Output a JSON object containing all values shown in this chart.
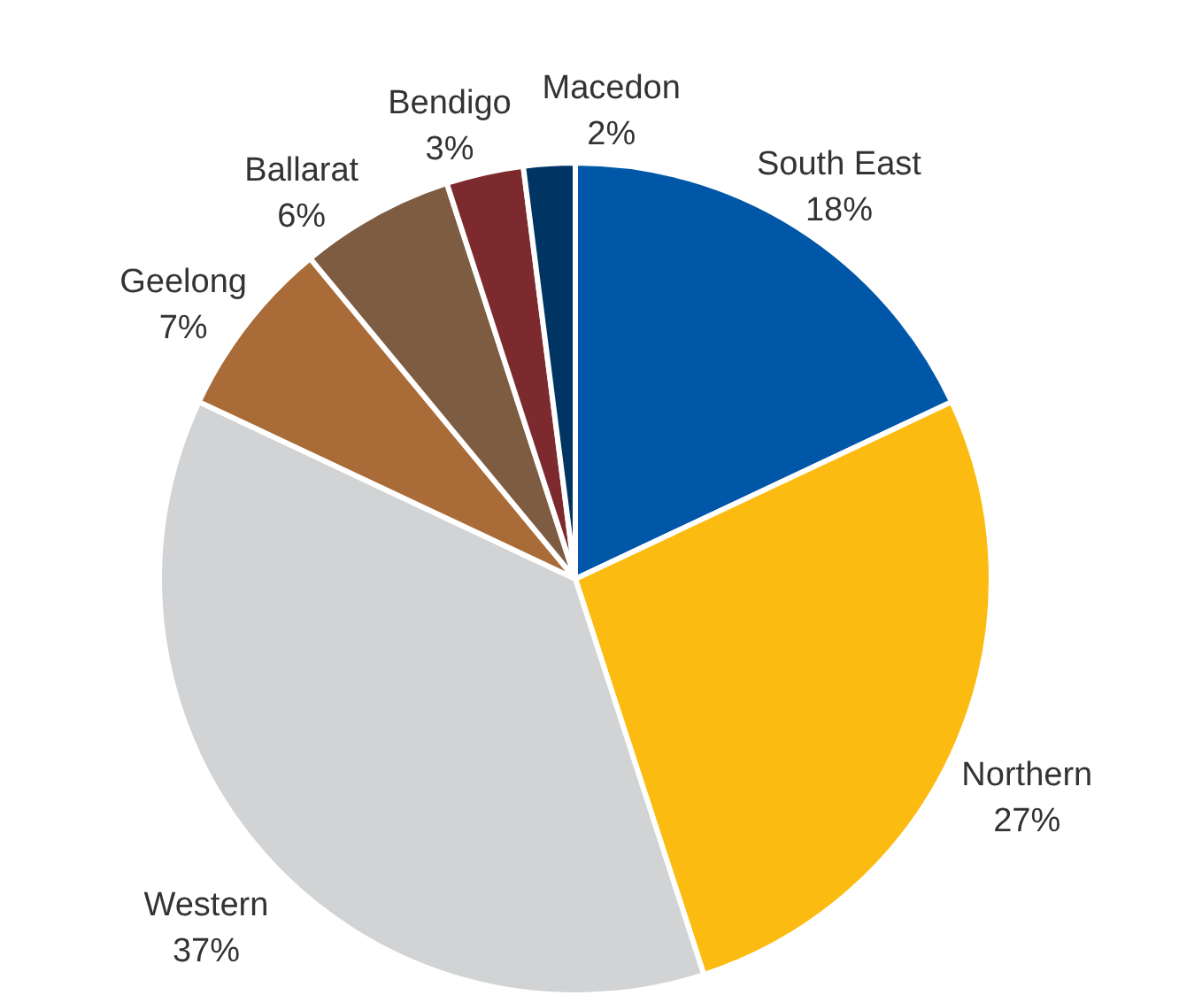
{
  "chart_data": {
    "type": "pie",
    "categories": [
      "South East",
      "Northern",
      "Western",
      "Geelong",
      "Ballarat",
      "Bendigo",
      "Macedon"
    ],
    "values": [
      18,
      27,
      37,
      7,
      6,
      3,
      2
    ],
    "value_labels": [
      "18%",
      "27%",
      "37%",
      "7%",
      "6%",
      "3%",
      "2%"
    ],
    "colors": [
      "#0057a8",
      "#fbbb10",
      "#d1d3d4",
      "#a96b38",
      "#7d5c42",
      "#7d2a2e",
      "#003462"
    ]
  }
}
